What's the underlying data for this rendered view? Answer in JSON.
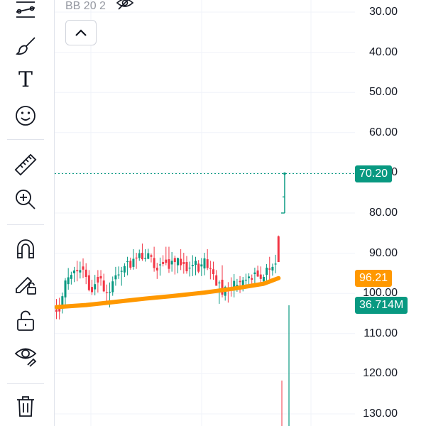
{
  "legend": {
    "indicator": "BB 20 2",
    "visibility_icon": "eye-crossed-icon"
  },
  "toolbar": {
    "tools": [
      {
        "name": "trend-line-tools-icon",
        "icon": "line-tools"
      },
      {
        "name": "brush-icon",
        "icon": "brush"
      },
      {
        "name": "text-tool-icon",
        "icon": "text"
      },
      {
        "name": "emoji-icon",
        "icon": "smile"
      },
      {
        "name": "ruler-icon",
        "icon": "ruler"
      },
      {
        "name": "zoom-in-icon",
        "icon": "zoom"
      },
      {
        "name": "magnet-icon",
        "icon": "magnet"
      },
      {
        "name": "lock-drawings-icon",
        "icon": "pencil-lock"
      },
      {
        "name": "unlock-icon",
        "icon": "unlock"
      },
      {
        "name": "visibility-icon",
        "icon": "eye"
      },
      {
        "name": "trash-icon",
        "icon": "trash"
      }
    ],
    "text_glyph": "T"
  },
  "price_axis": {
    "ticks": [
      "30.00",
      "40.00",
      "50.00",
      "60.00",
      "70.00",
      "80.00",
      "90.00",
      "100.00",
      "110.00",
      "120.00",
      "130.00"
    ],
    "current_price": {
      "label": "70.20",
      "value": 70.2,
      "color": "#089981"
    },
    "ma_price": {
      "label": "96.21",
      "value": 96.21,
      "color": "#ff9800"
    },
    "volume": {
      "label": "36.714M",
      "value": 36.714,
      "color": "#089981"
    }
  },
  "colors": {
    "up": "#089981",
    "down": "#f23645",
    "ma": "#ff9800",
    "grid": "#f0f3fa"
  },
  "chart_data": {
    "type": "candlestick",
    "y_axis": {
      "inverted": true,
      "min": 27,
      "max": 133
    },
    "ohlc": [
      [
        104.0,
        106.4,
        101.4,
        104.6
      ],
      [
        103.8,
        106.5,
        101.1,
        104.5
      ],
      [
        103.8,
        105.0,
        99.8,
        100.7
      ],
      [
        101.0,
        103.0,
        96.2,
        96.8
      ],
      [
        97.7,
        99.1,
        93.7,
        96.0
      ],
      [
        96.4,
        97.8,
        94.6,
        95.4
      ],
      [
        95.0,
        97.2,
        93.4,
        94.3
      ],
      [
        94.2,
        97.0,
        91.9,
        94.5
      ],
      [
        94.8,
        96.3,
        92.1,
        94.2
      ],
      [
        93.3,
        96.2,
        91.3,
        94.1
      ],
      [
        94.1,
        97.7,
        92.5,
        95.9
      ],
      [
        95.5,
        99.5,
        94.2,
        99.2
      ],
      [
        98.4,
        100.4,
        96.6,
        99.7
      ],
      [
        99.0,
        100.5,
        95.4,
        97.7
      ],
      [
        95.9,
        99.8,
        94.2,
        97.3
      ],
      [
        95.7,
        98.1,
        94.2,
        96.3
      ],
      [
        96.8,
        99.7,
        95.1,
        99.5
      ],
      [
        99.7,
        102.1,
        97.8,
        99.9
      ],
      [
        99.7,
        103.5,
        97.3,
        99.6
      ],
      [
        99.7,
        100.6,
        95.8,
        97.0
      ],
      [
        96.5,
        98.1,
        93.4,
        95.5
      ],
      [
        95.3,
        96.4,
        93.3,
        95.3
      ],
      [
        94.5,
        98.1,
        93.4,
        94.4
      ],
      [
        94.8,
        95.9,
        92.5,
        93.2
      ],
      [
        92.0,
        95.5,
        90.9,
        92.0
      ],
      [
        91.9,
        94.1,
        91.1,
        93.6
      ],
      [
        93.4,
        94.1,
        89.0,
        91.4
      ],
      [
        91.1,
        93.9,
        89.9,
        91.2
      ],
      [
        91.2,
        91.9,
        89.1,
        90.0
      ],
      [
        89.9,
        91.9,
        87.6,
        91.5
      ],
      [
        91.2,
        92.1,
        89.0,
        91.2
      ],
      [
        91.4,
        91.5,
        88.9,
        90.0
      ],
      [
        90.5,
        92.3,
        90.1,
        90.9
      ],
      [
        91.2,
        94.6,
        88.4,
        93.7
      ],
      [
        93.6,
        96.4,
        92.4,
        94.3
      ],
      [
        92.8,
        95.6,
        91.1,
        92.8
      ],
      [
        92.2,
        93.3,
        90.5,
        92.7
      ],
      [
        91.6,
        93.0,
        88.4,
        92.4
      ],
      [
        91.5,
        94.9,
        88.4,
        93.9
      ],
      [
        92.8,
        94.6,
        89.7,
        91.9
      ],
      [
        91.2,
        95.3,
        90.6,
        92.2
      ],
      [
        93.0,
        95.0,
        91.1,
        91.2
      ],
      [
        91.4,
        94.2,
        89.0,
        93.0
      ],
      [
        92.2,
        95.1,
        89.9,
        92.7
      ],
      [
        92.2,
        95.1,
        90.7,
        94.5
      ],
      [
        93.8,
        95.8,
        92.1,
        93.6
      ],
      [
        93.2,
        95.7,
        90.5,
        92.9
      ],
      [
        92.9,
        95.5,
        90.9,
        91.9
      ],
      [
        92.6,
        95.0,
        91.7,
        94.6
      ],
      [
        93.3,
        95.7,
        91.2,
        92.8
      ],
      [
        93.8,
        95.5,
        89.9,
        91.3
      ],
      [
        91.5,
        94.2,
        89.0,
        93.7
      ],
      [
        93.7,
        96.5,
        91.9,
        93.8
      ],
      [
        94.0,
        96.6,
        92.1,
        95.2
      ],
      [
        95.5,
        98.1,
        94.2,
        98.1
      ],
      [
        97.5,
        102.6,
        96.8,
        97.3
      ],
      [
        96.6,
        101.0,
        93.0,
        100.3
      ],
      [
        100.6,
        101.8,
        98.1,
        98.4
      ],
      [
        99.1,
        102.3,
        97.2,
        99.3
      ],
      [
        98.8,
        100.8,
        96.0,
        99.3
      ],
      [
        98.7,
        101.0,
        95.2,
        96.9
      ],
      [
        98.4,
        99.6,
        96.4,
        97.9
      ],
      [
        96.9,
        99.9,
        95.7,
        97.2
      ],
      [
        98.1,
        99.5,
        95.9,
        96.7
      ],
      [
        96.8,
        98.4,
        95.1,
        96.6
      ],
      [
        96.2,
        97.9,
        95.0,
        95.8
      ],
      [
        96.2,
        98.4,
        95.3,
        96.6
      ],
      [
        95.2,
        97.7,
        93.6,
        94.8
      ],
      [
        94.3,
        95.9,
        93.1,
        95.8
      ],
      [
        95.3,
        98.1,
        93.3,
        96.4
      ],
      [
        97.0,
        98.0,
        95.3,
        95.9
      ],
      [
        95.4,
        97.0,
        92.7,
        93.6
      ],
      [
        93.8,
        96.6,
        90.9,
        94.1
      ],
      [
        94.3,
        95.6,
        92.6,
        93.4
      ],
      [
        92.7,
        95.0,
        90.4,
        92.6
      ],
      [
        85.8,
        92.2,
        85.6,
        92.2
      ]
    ],
    "moving_average": [
      {
        "i": 0,
        "v": 103.4
      },
      {
        "i": 10,
        "v": 102.9
      },
      {
        "i": 20,
        "v": 102.1
      },
      {
        "i": 30,
        "v": 101.3
      },
      {
        "i": 40,
        "v": 100.6
      },
      {
        "i": 50,
        "v": 99.8
      },
      {
        "i": 60,
        "v": 98.8
      },
      {
        "i": 70,
        "v": 97.6
      },
      {
        "i": 75,
        "v": 96.21
      }
    ],
    "last_bar": {
      "open": 80.0,
      "high": 70.2,
      "close": 70.2,
      "dash_at": 76.0
    }
  }
}
